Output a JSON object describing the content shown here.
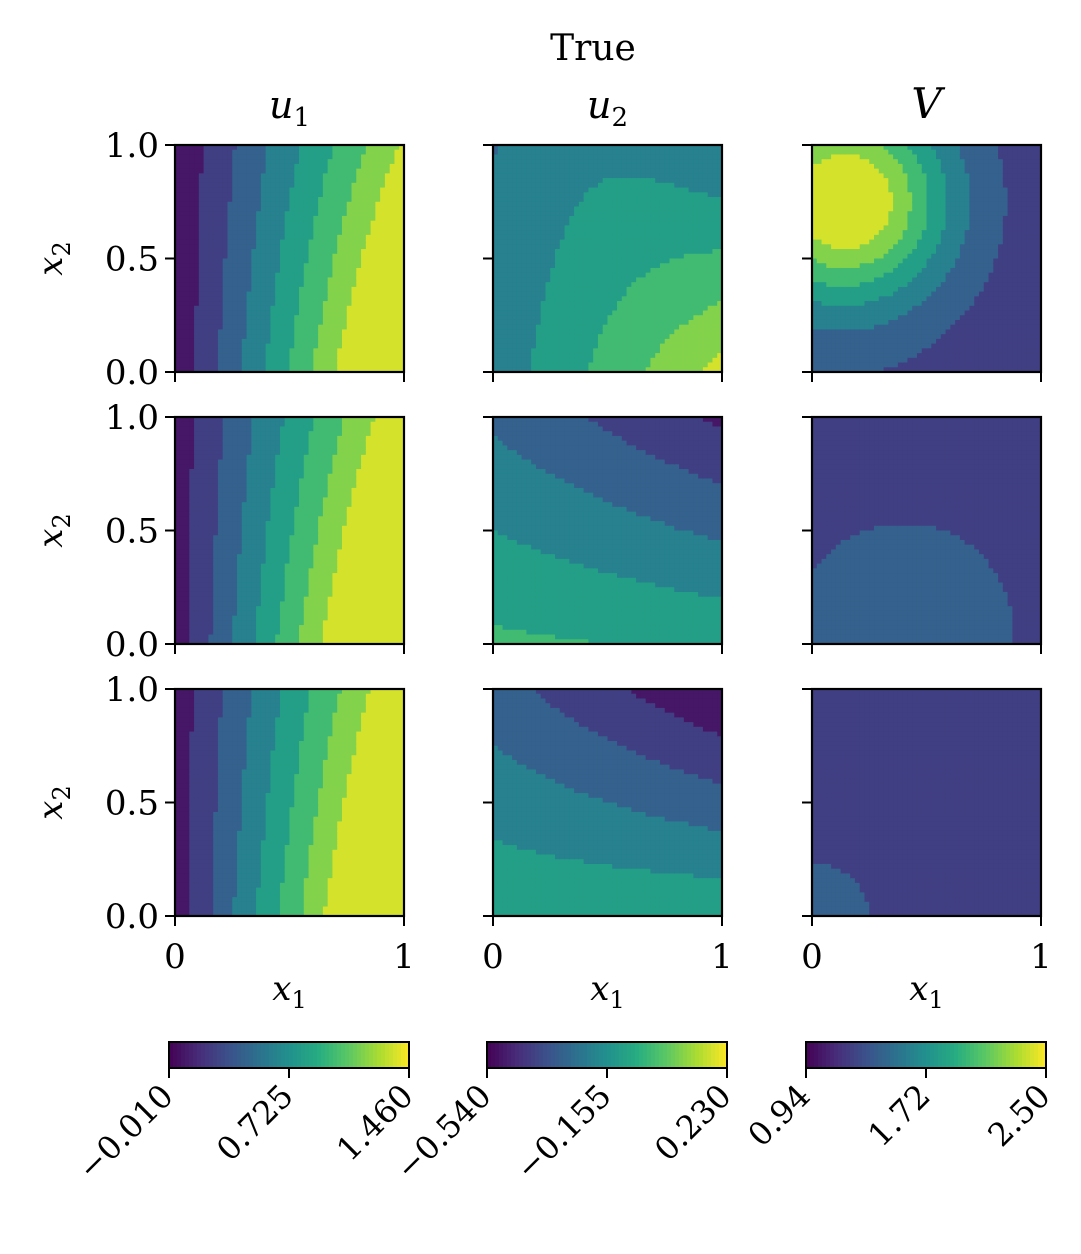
{
  "chart_data": {
    "type": "heatmap",
    "title": "True",
    "colormap": "viridis",
    "levels": 8,
    "column_titles": [
      {
        "base": "u",
        "sub": "1"
      },
      {
        "base": "u",
        "sub": "2"
      },
      {
        "base": "V",
        "sub": ""
      }
    ],
    "xlabel": {
      "base": "x",
      "sub": "1"
    },
    "ylabel": {
      "base": "x",
      "sub": "2"
    },
    "xlim": [
      0,
      1
    ],
    "ylim": [
      0,
      1
    ],
    "x_ticks": [
      "0",
      "1"
    ],
    "y_ticks": [
      "0.0",
      "0.5",
      "1.0"
    ],
    "colorbars": [
      {
        "min": -0.01,
        "max": 1.46,
        "ticks": [
          "−0.010",
          "0.725",
          "1.460"
        ]
      },
      {
        "min": -0.54,
        "max": 0.23,
        "ticks": [
          "−0.540",
          "−0.155",
          "0.230"
        ]
      },
      {
        "min": 0.94,
        "max": 2.5,
        "ticks": [
          "0.94",
          "1.72",
          "2.50"
        ]
      }
    ],
    "panels": [
      [
        {
          "field": "u1",
          "row": 0,
          "col": 0
        },
        {
          "field": "u2",
          "row": 0,
          "col": 1
        },
        {
          "field": "V",
          "row": 0,
          "col": 2
        }
      ],
      [
        {
          "field": "u1",
          "row": 1,
          "col": 0
        },
        {
          "field": "u2",
          "row": 1,
          "col": 1
        },
        {
          "field": "V",
          "row": 1,
          "col": 2
        }
      ],
      [
        {
          "field": "u1",
          "row": 2,
          "col": 0
        },
        {
          "field": "u2",
          "row": 2,
          "col": 1
        },
        {
          "field": "V",
          "row": 2,
          "col": 2
        }
      ]
    ]
  }
}
